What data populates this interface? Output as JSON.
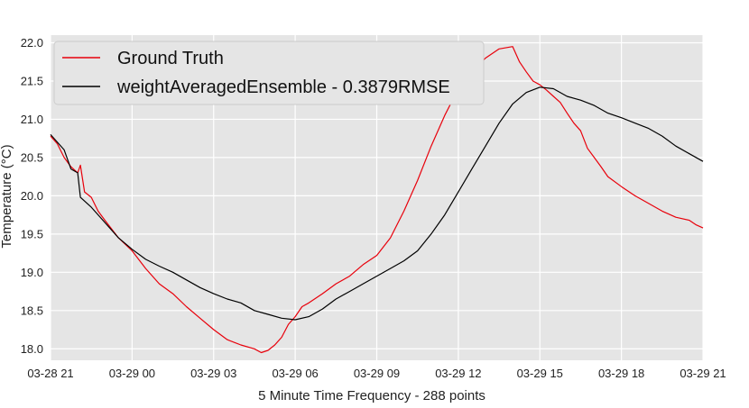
{
  "chart_data": {
    "type": "line",
    "xlabel": "5 Minute Time Frequency - 288 points",
    "ylabel": "Temperature (°C)",
    "xlim": [
      0,
      24
    ],
    "ylim": [
      17.85,
      22.1
    ],
    "grid": true,
    "legend_position": "top-left",
    "x_ticks": [
      {
        "value": 0,
        "label": "03-28 21"
      },
      {
        "value": 3,
        "label": "03-29 00"
      },
      {
        "value": 6,
        "label": "03-29 03"
      },
      {
        "value": 9,
        "label": "03-29 06"
      },
      {
        "value": 12,
        "label": "03-29 09"
      },
      {
        "value": 15,
        "label": "03-29 12"
      },
      {
        "value": 18,
        "label": "03-29 15"
      },
      {
        "value": 21,
        "label": "03-29 18"
      },
      {
        "value": 24,
        "label": "03-29 21"
      }
    ],
    "y_ticks": [
      {
        "value": 18.0,
        "label": "18.0"
      },
      {
        "value": 18.5,
        "label": "18.5"
      },
      {
        "value": 19.0,
        "label": "19.0"
      },
      {
        "value": 19.5,
        "label": "19.5"
      },
      {
        "value": 20.0,
        "label": "20.0"
      },
      {
        "value": 20.5,
        "label": "20.5"
      },
      {
        "value": 21.0,
        "label": "21.0"
      },
      {
        "value": 21.5,
        "label": "21.5"
      },
      {
        "value": 22.0,
        "label": "22.0"
      }
    ],
    "series": [
      {
        "name": "Ground Truth",
        "color": "#e8000b",
        "x": [
          0,
          0.25,
          0.5,
          0.75,
          1.0,
          1.1,
          1.25,
          1.5,
          1.75,
          2.0,
          2.5,
          3.0,
          3.5,
          4.0,
          4.5,
          5.0,
          5.5,
          6.0,
          6.5,
          7.0,
          7.5,
          7.75,
          8.0,
          8.25,
          8.5,
          8.75,
          9.0,
          9.25,
          9.5,
          10.0,
          10.5,
          11.0,
          11.5,
          12.0,
          12.5,
          13.0,
          13.5,
          14.0,
          14.5,
          15.0,
          15.5,
          16.0,
          16.5,
          17.0,
          17.25,
          17.5,
          17.75,
          18.0,
          18.25,
          18.5,
          18.75,
          19.0,
          19.25,
          19.5,
          19.75,
          20.0,
          20.25,
          20.5,
          21.0,
          21.5,
          22.0,
          22.5,
          23.0,
          23.5,
          23.75,
          24.0
        ],
        "y": [
          20.78,
          20.68,
          20.5,
          20.38,
          20.3,
          20.4,
          20.05,
          19.98,
          19.8,
          19.68,
          19.45,
          19.28,
          19.05,
          18.85,
          18.72,
          18.55,
          18.4,
          18.25,
          18.12,
          18.05,
          18.0,
          17.95,
          17.98,
          18.05,
          18.15,
          18.32,
          18.42,
          18.55,
          18.6,
          18.72,
          18.85,
          18.95,
          19.1,
          19.22,
          19.45,
          19.8,
          20.2,
          20.65,
          21.05,
          21.4,
          21.62,
          21.8,
          21.92,
          21.95,
          21.75,
          21.62,
          21.5,
          21.45,
          21.38,
          21.3,
          21.22,
          21.08,
          20.95,
          20.85,
          20.62,
          20.5,
          20.38,
          20.25,
          20.12,
          20.0,
          19.9,
          19.8,
          19.72,
          19.68,
          19.62,
          19.58
        ]
      },
      {
        "name": "weightAveragedEnsemble - 0.3879RMSE",
        "color": "#000000",
        "x": [
          0,
          0.5,
          0.75,
          1.0,
          1.1,
          1.5,
          2.0,
          2.5,
          3.0,
          3.5,
          4.0,
          4.5,
          5.0,
          5.5,
          6.0,
          6.5,
          7.0,
          7.5,
          8.0,
          8.5,
          9.0,
          9.5,
          10.0,
          10.5,
          11.0,
          11.5,
          12.0,
          12.5,
          13.0,
          13.5,
          14.0,
          14.5,
          15.0,
          15.5,
          16.0,
          16.5,
          17.0,
          17.5,
          18.0,
          18.5,
          19.0,
          19.5,
          20.0,
          20.5,
          21.0,
          21.5,
          22.0,
          22.5,
          23.0,
          23.5,
          24.0
        ],
        "y": [
          20.8,
          20.6,
          20.35,
          20.3,
          19.98,
          19.85,
          19.65,
          19.45,
          19.3,
          19.17,
          19.08,
          19.0,
          18.9,
          18.8,
          18.72,
          18.65,
          18.6,
          18.5,
          18.45,
          18.4,
          18.38,
          18.42,
          18.52,
          18.65,
          18.75,
          18.85,
          18.95,
          19.05,
          19.15,
          19.28,
          19.5,
          19.75,
          20.05,
          20.35,
          20.65,
          20.95,
          21.2,
          21.35,
          21.42,
          21.4,
          21.3,
          21.25,
          21.18,
          21.08,
          21.02,
          20.95,
          20.88,
          20.78,
          20.65,
          20.55,
          20.45
        ]
      }
    ]
  }
}
